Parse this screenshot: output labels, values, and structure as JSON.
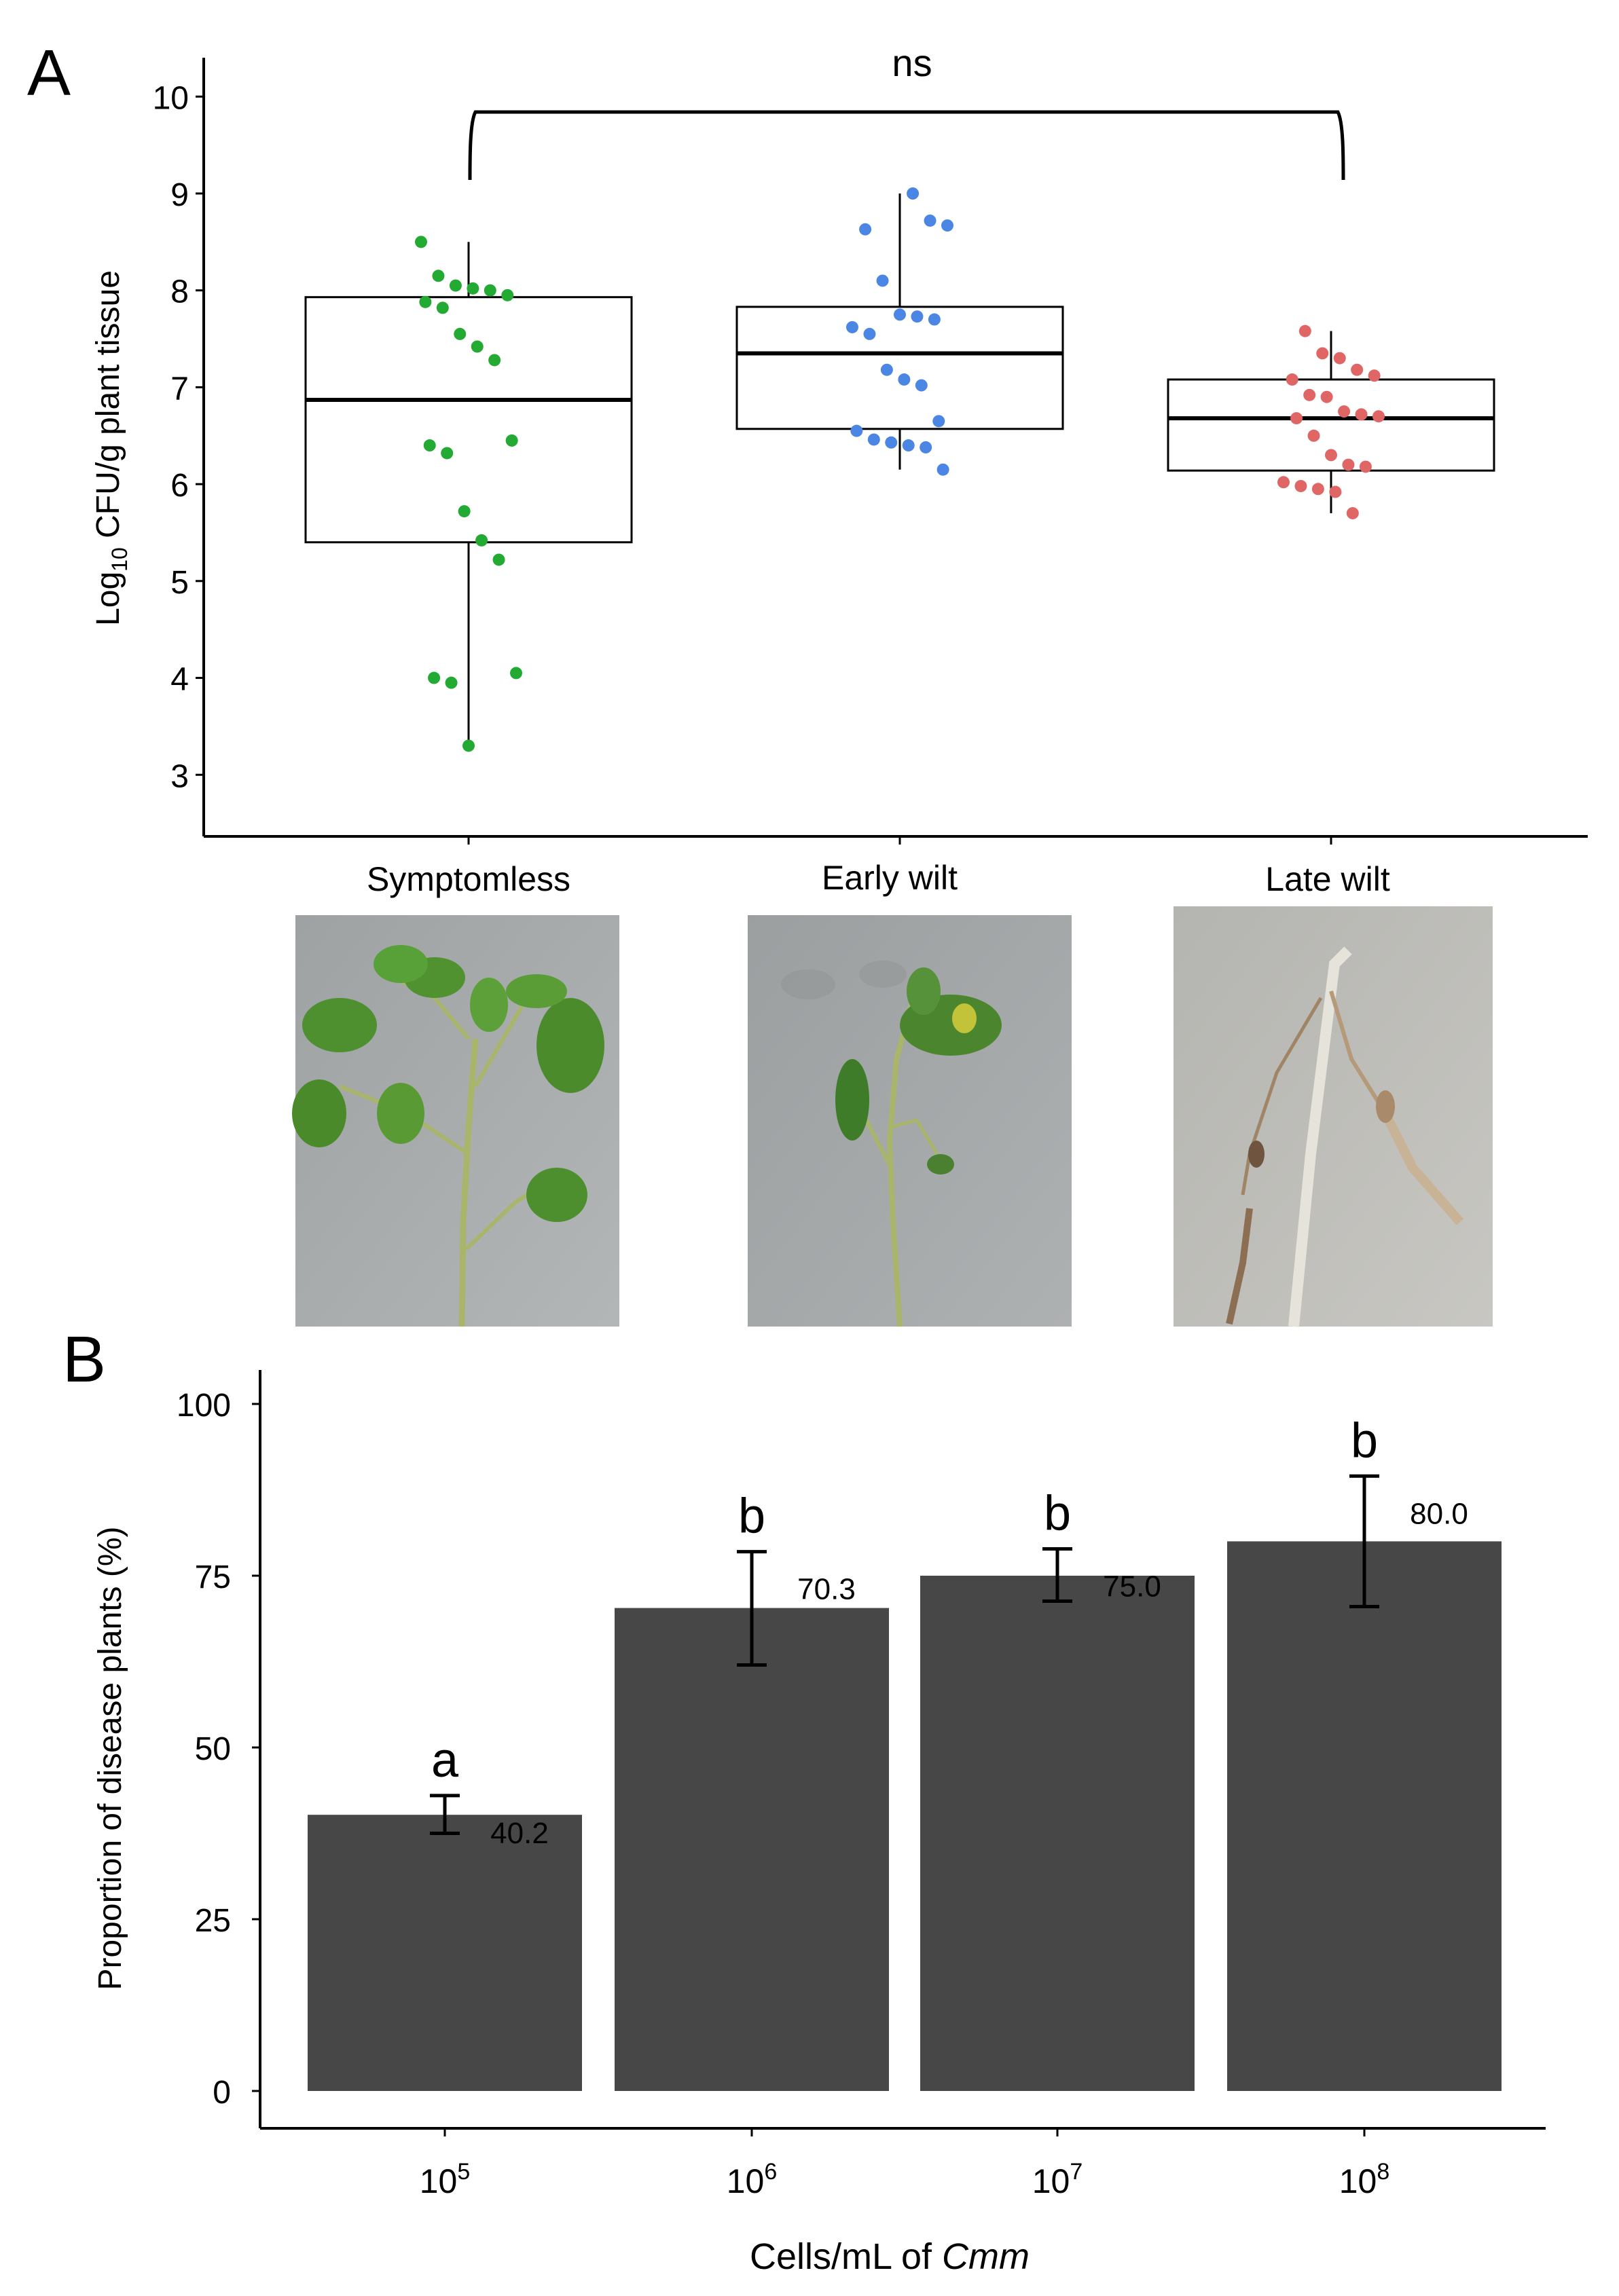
{
  "panel_a": {
    "letter": "A",
    "ylabel_main": "Log",
    "ylabel_sub": "10",
    "ylabel_rest": " CFU/g plant tissue",
    "significance": "ns",
    "groups": [
      "Symptomless",
      "Early wilt",
      "Late wilt"
    ],
    "photos": [
      {
        "label": "Symptomless",
        "description": "green tomato plant"
      },
      {
        "label": "Early wilt",
        "description": "wilting tomato plant"
      },
      {
        "label": "Late wilt",
        "description": "dried dead tomato plant"
      }
    ]
  },
  "panel_b": {
    "letter": "B",
    "ylabel": "Proportion of disease plants (%)",
    "xlabel_prefix": "Cells/mL of ",
    "xlabel_italic": "Cmm"
  },
  "chart_data": [
    {
      "type": "box",
      "ylabel": "Log10 CFU/g plant tissue",
      "ylim": [
        2.3,
        10.4
      ],
      "yticks": [
        3,
        4,
        5,
        6,
        7,
        8,
        9,
        10
      ],
      "categories": [
        "Symptomless",
        "Early wilt",
        "Late wilt"
      ],
      "boxes": [
        {
          "category": "Symptomless",
          "min": 3.3,
          "q1": 5.4,
          "median": 6.87,
          "q3": 7.93,
          "max": 8.5,
          "color": "#22aa33",
          "points": [
            8.5,
            8.15,
            8.05,
            8.02,
            8.0,
            7.95,
            7.88,
            7.82,
            7.55,
            7.42,
            7.28,
            6.45,
            6.4,
            6.32,
            5.72,
            5.42,
            5.22,
            4.05,
            4.0,
            3.95,
            3.3
          ]
        },
        {
          "category": "Early wilt",
          "min": 6.15,
          "q1": 6.57,
          "median": 7.35,
          "q3": 7.83,
          "max": 9.0,
          "color": "#4c86e4",
          "points": [
            9.0,
            8.72,
            8.67,
            8.63,
            8.1,
            7.75,
            7.73,
            7.7,
            7.62,
            7.55,
            7.18,
            7.08,
            7.02,
            6.65,
            6.55,
            6.46,
            6.43,
            6.4,
            6.38,
            6.15
          ]
        },
        {
          "category": "Late wilt",
          "min": 5.7,
          "q1": 6.14,
          "median": 6.68,
          "q3": 7.08,
          "max": 7.58,
          "color": "#e06666",
          "points": [
            7.58,
            7.35,
            7.3,
            7.18,
            7.12,
            7.08,
            6.92,
            6.9,
            6.75,
            6.72,
            6.7,
            6.68,
            6.5,
            6.3,
            6.2,
            6.18,
            6.02,
            5.98,
            5.95,
            5.92,
            5.7
          ]
        }
      ],
      "annotations": [
        {
          "text": "ns",
          "between": [
            "Symptomless",
            "Late wilt"
          ]
        }
      ]
    },
    {
      "type": "bar",
      "xlabel": "Cells/mL of Cmm",
      "ylabel": "Proportion of disease plants (%)",
      "ylim": [
        0,
        100
      ],
      "yticks": [
        0,
        25,
        50,
        75,
        100
      ],
      "categories": [
        {
          "base": "10",
          "exp": "5"
        },
        {
          "base": "10",
          "exp": "6"
        },
        {
          "base": "10",
          "exp": "7"
        },
        {
          "base": "10",
          "exp": "8"
        }
      ],
      "values": [
        40.2,
        70.3,
        75.0,
        80.0
      ],
      "value_labels": [
        "40.2",
        "70.3",
        "75.0",
        "80.0"
      ],
      "error_low": [
        37.5,
        62.0,
        71.3,
        70.5
      ],
      "error_high": [
        43.0,
        78.5,
        78.9,
        89.5
      ],
      "significance_letters": [
        "a",
        "b",
        "b",
        "b"
      ],
      "bar_color": "#474747"
    }
  ]
}
